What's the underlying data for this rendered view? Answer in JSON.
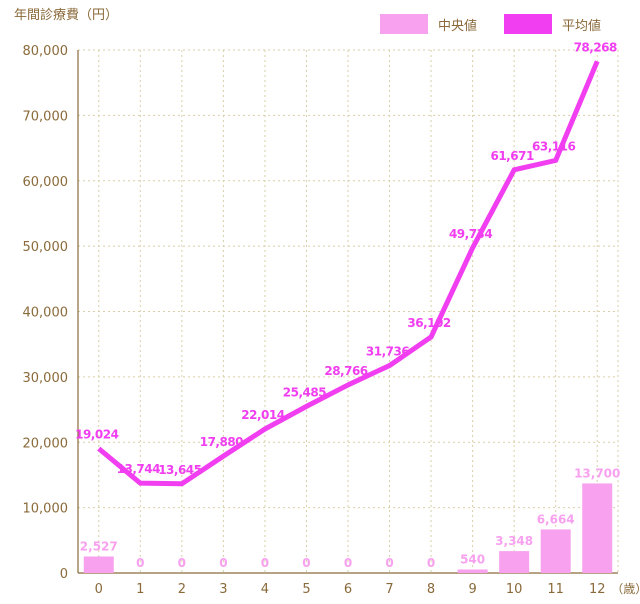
{
  "chart_data": {
    "type": "bar+line",
    "ylabel": "年間診療費（円）",
    "xlabel_suffix": "（歳）",
    "categories": [
      "0",
      "1",
      "2",
      "3",
      "4",
      "5",
      "6",
      "7",
      "8",
      "9",
      "10",
      "11",
      "12"
    ],
    "ylim": [
      0,
      80000
    ],
    "yticks": [
      "0",
      "10,000",
      "20,000",
      "30,000",
      "40,000",
      "50,000",
      "60,000",
      "70,000",
      "80,000"
    ],
    "series": [
      {
        "name": "中央値",
        "type": "bar",
        "color": "#f7a1ef",
        "values": [
          2527,
          0,
          0,
          0,
          0,
          0,
          0,
          0,
          0,
          540,
          3348,
          6664,
          13700
        ],
        "labels": [
          "2,527",
          "0",
          "0",
          "0",
          "0",
          "0",
          "0",
          "0",
          "0",
          "540",
          "3,348",
          "6,664",
          "13,700"
        ]
      },
      {
        "name": "平均値",
        "type": "line",
        "color": "#f03ef0",
        "values": [
          19024,
          13744,
          13645,
          17880,
          22014,
          25485,
          28766,
          31736,
          36102,
          49734,
          61671,
          63116,
          78268
        ],
        "labels": [
          "19,024",
          "13,744",
          "13,645",
          "17,880",
          "22,014",
          "25,485",
          "28,766",
          "31,736",
          "36,102",
          "49,734",
          "61,671",
          "63,116",
          "78,268"
        ]
      }
    ],
    "grid": true,
    "legend": "top-right",
    "axis_color": "#8a6a3a",
    "grid_color": "#d9cfa8"
  }
}
